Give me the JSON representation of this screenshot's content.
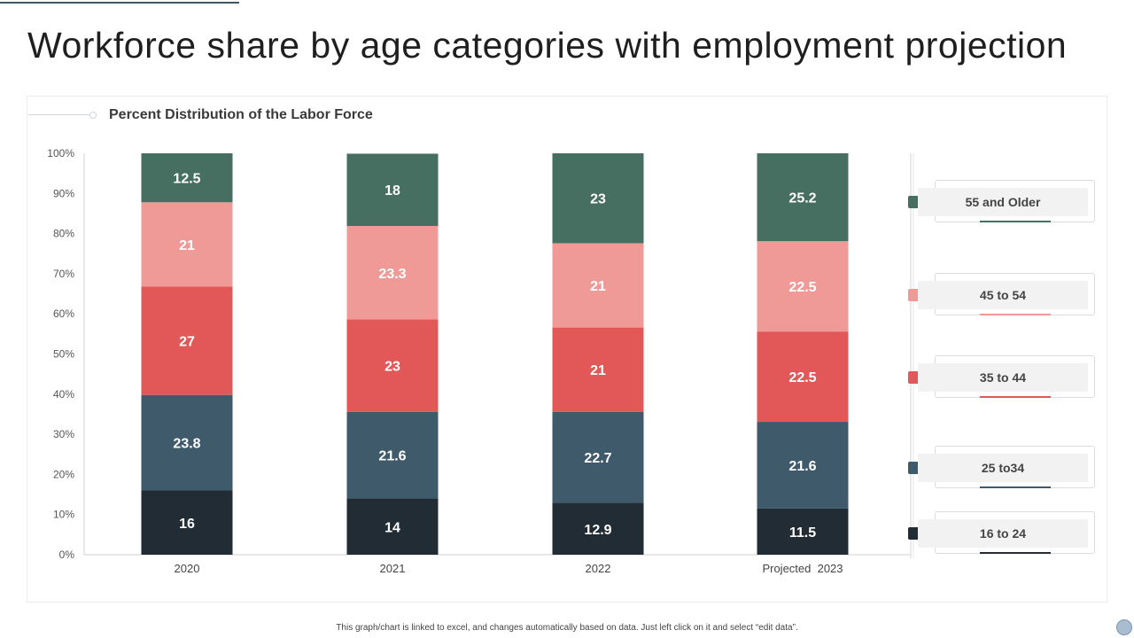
{
  "page": {
    "title": "Workforce share by age categories with employment projection",
    "footnote": "This graph/chart is linked to excel, and changes automatically based on data. Just left click on it and select “edit data”."
  },
  "colors": {
    "16 to 24": "#212c34",
    "25 to34": "#3f5a6b",
    "35 to 44": "#e25757",
    "45 to 54": "#ef9a97",
    "55 and Older": "#466f61"
  },
  "legend": [
    {
      "label": "55 and Older",
      "color": "#466f61"
    },
    {
      "label": "45 to 54",
      "color": "#ef9a97"
    },
    {
      "label": "35 to 44",
      "color": "#e25757"
    },
    {
      "label": "25 to34",
      "color": "#3f5a6b"
    },
    {
      "label": "16 to 24",
      "color": "#212c34"
    }
  ],
  "chart_data": {
    "type": "bar",
    "stacked": true,
    "title": "Percent Distribution of the Labor Force",
    "xlabel": "",
    "ylabel": "",
    "ylim": [
      0,
      100
    ],
    "ytick_labels": [
      "0%",
      "10%",
      "20%",
      "30%",
      "40%",
      "50%",
      "60%",
      "70%",
      "80%",
      "90%",
      "100%"
    ],
    "categories": [
      "2020",
      "2021",
      "2022",
      "Projected  2023"
    ],
    "legend_position": "right",
    "series": [
      {
        "name": "16 to 24",
        "color": "#212c34",
        "values": [
          16,
          14,
          12.9,
          11.5
        ]
      },
      {
        "name": "25 to34",
        "color": "#3f5a6b",
        "values": [
          23.8,
          21.6,
          22.7,
          21.6
        ]
      },
      {
        "name": "35 to 44",
        "color": "#e25757",
        "values": [
          27,
          23,
          21,
          22.5
        ]
      },
      {
        "name": "45 to 54",
        "color": "#ef9a97",
        "values": [
          21,
          23.3,
          21,
          22.5
        ]
      },
      {
        "name": "55 and Older",
        "color": "#466f61",
        "values": [
          12.5,
          18,
          23,
          25.2
        ]
      }
    ]
  }
}
